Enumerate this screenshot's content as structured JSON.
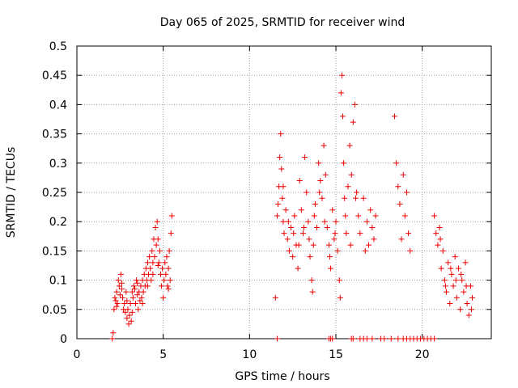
{
  "chart_data": {
    "type": "scatter",
    "title": "Day 065 of 2025, SRMTID for receiver wind",
    "xlabel": "GPS time / hours",
    "ylabel": "SRMTID / TECUs",
    "xlim": [
      0,
      24
    ],
    "ylim": [
      0,
      0.5
    ],
    "xticks": [
      0,
      5,
      10,
      15,
      20
    ],
    "xtick_labels": [
      "0",
      "5",
      "10",
      "15",
      "20"
    ],
    "yticks": [
      0,
      0.05,
      0.1,
      0.15,
      0.2,
      0.25,
      0.3,
      0.35,
      0.4,
      0.45,
      0.5
    ],
    "ytick_labels": [
      "0",
      "0.05",
      "0.1",
      "0.15",
      "0.2",
      "0.25",
      "0.3",
      "0.35",
      "0.4",
      "0.45",
      "0.5"
    ],
    "grid": true,
    "marker": "+",
    "color": "#ee0000",
    "series": [
      {
        "name": "SRMTID",
        "points": [
          [
            2.05,
            0.0
          ],
          [
            2.1,
            0.01
          ],
          [
            2.15,
            0.05
          ],
          [
            2.2,
            0.07
          ],
          [
            2.25,
            0.065
          ],
          [
            2.3,
            0.08
          ],
          [
            2.35,
            0.06
          ],
          [
            2.4,
            0.1
          ],
          [
            2.45,
            0.09
          ],
          [
            2.5,
            0.075
          ],
          [
            2.55,
            0.11
          ],
          [
            2.6,
            0.085
          ],
          [
            2.65,
            0.07
          ],
          [
            2.7,
            0.05
          ],
          [
            2.75,
            0.06
          ],
          [
            2.8,
            0.045
          ],
          [
            2.85,
            0.08
          ],
          [
            2.9,
            0.035
          ],
          [
            2.95,
            0.05
          ],
          [
            3.0,
            0.025
          ],
          [
            3.05,
            0.04
          ],
          [
            3.1,
            0.06
          ],
          [
            3.15,
            0.03
          ],
          [
            3.2,
            0.045
          ],
          [
            3.25,
            0.07
          ],
          [
            3.3,
            0.09
          ],
          [
            3.35,
            0.085
          ],
          [
            3.4,
            0.06
          ],
          [
            3.45,
            0.1
          ],
          [
            3.5,
            0.075
          ],
          [
            3.55,
            0.05
          ],
          [
            3.6,
            0.08
          ],
          [
            3.65,
            0.065
          ],
          [
            3.7,
            0.09
          ],
          [
            3.75,
            0.07
          ],
          [
            3.8,
            0.1
          ],
          [
            3.85,
            0.08
          ],
          [
            3.9,
            0.11
          ],
          [
            3.95,
            0.09
          ],
          [
            4.0,
            0.12
          ],
          [
            4.05,
            0.1
          ],
          [
            4.1,
            0.13
          ],
          [
            4.15,
            0.11
          ],
          [
            4.2,
            0.14
          ],
          [
            4.25,
            0.12
          ],
          [
            4.3,
            0.1
          ],
          [
            4.35,
            0.15
          ],
          [
            4.4,
            0.13
          ],
          [
            4.45,
            0.17
          ],
          [
            4.5,
            0.14
          ],
          [
            4.55,
            0.19
          ],
          [
            4.6,
            0.16
          ],
          [
            4.65,
            0.2
          ],
          [
            4.7,
            0.17
          ],
          [
            4.75,
            0.13
          ],
          [
            4.8,
            0.15
          ],
          [
            4.85,
            0.11
          ],
          [
            4.9,
            0.09
          ],
          [
            4.95,
            0.12
          ],
          [
            5.0,
            0.07
          ],
          [
            5.05,
            0.1
          ],
          [
            5.1,
            0.13
          ],
          [
            5.15,
            0.11
          ],
          [
            5.2,
            0.14
          ],
          [
            5.25,
            0.09
          ],
          [
            5.3,
            0.12
          ],
          [
            5.35,
            0.15
          ],
          [
            5.4,
            0.1
          ],
          [
            5.45,
            0.18
          ],
          [
            5.5,
            0.21
          ],
          [
            2.3,
            0.055
          ],
          [
            2.6,
            0.095
          ],
          [
            2.9,
            0.065
          ],
          [
            3.2,
            0.08
          ],
          [
            3.5,
            0.095
          ],
          [
            3.8,
            0.06
          ],
          [
            4.1,
            0.09
          ],
          [
            4.4,
            0.11
          ],
          [
            4.7,
            0.125
          ],
          [
            5.3,
            0.085
          ],
          [
            11.5,
            0.07
          ],
          [
            11.6,
            0.21
          ],
          [
            11.7,
            0.26
          ],
          [
            11.75,
            0.31
          ],
          [
            11.8,
            0.35
          ],
          [
            11.85,
            0.29
          ],
          [
            11.9,
            0.24
          ],
          [
            11.95,
            0.2
          ],
          [
            12.0,
            0.18
          ],
          [
            12.1,
            0.22
          ],
          [
            12.2,
            0.17
          ],
          [
            12.3,
            0.15
          ],
          [
            12.4,
            0.19
          ],
          [
            12.5,
            0.14
          ],
          [
            12.6,
            0.21
          ],
          [
            12.7,
            0.16
          ],
          [
            12.8,
            0.12
          ],
          [
            12.9,
            0.27
          ],
          [
            13.0,
            0.22
          ],
          [
            13.1,
            0.18
          ],
          [
            13.2,
            0.31
          ],
          [
            13.3,
            0.25
          ],
          [
            13.4,
            0.2
          ],
          [
            13.5,
            0.14
          ],
          [
            13.6,
            0.1
          ],
          [
            13.65,
            0.08
          ],
          [
            13.7,
            0.16
          ],
          [
            13.8,
            0.23
          ],
          [
            13.9,
            0.19
          ],
          [
            14.0,
            0.3
          ],
          [
            14.1,
            0.27
          ],
          [
            14.2,
            0.24
          ],
          [
            14.3,
            0.33
          ],
          [
            14.4,
            0.28
          ],
          [
            14.5,
            0.19
          ],
          [
            14.6,
            0.16
          ],
          [
            14.7,
            0.12
          ],
          [
            14.8,
            0.22
          ],
          [
            14.9,
            0.17
          ],
          [
            15.0,
            0.2
          ],
          [
            15.1,
            0.15
          ],
          [
            15.2,
            0.1
          ],
          [
            15.25,
            0.07
          ],
          [
            15.3,
            0.42
          ],
          [
            15.35,
            0.45
          ],
          [
            15.4,
            0.38
          ],
          [
            15.45,
            0.3
          ],
          [
            15.5,
            0.24
          ],
          [
            15.6,
            0.18
          ],
          [
            15.7,
            0.26
          ],
          [
            15.8,
            0.33
          ],
          [
            15.9,
            0.28
          ],
          [
            16.0,
            0.37
          ],
          [
            16.1,
            0.4
          ],
          [
            16.2,
            0.25
          ],
          [
            16.3,
            0.21
          ],
          [
            16.4,
            0.18
          ],
          [
            16.6,
            0.24
          ],
          [
            16.7,
            0.15
          ],
          [
            16.8,
            0.2
          ],
          [
            16.9,
            0.16
          ],
          [
            17.0,
            0.22
          ],
          [
            17.1,
            0.19
          ],
          [
            17.2,
            0.17
          ],
          [
            17.3,
            0.21
          ],
          [
            18.4,
            0.38
          ],
          [
            18.5,
            0.3
          ],
          [
            18.6,
            0.26
          ],
          [
            18.7,
            0.23
          ],
          [
            18.8,
            0.17
          ],
          [
            18.9,
            0.28
          ],
          [
            19.0,
            0.21
          ],
          [
            19.1,
            0.25
          ],
          [
            19.2,
            0.18
          ],
          [
            19.3,
            0.15
          ],
          [
            11.65,
            0.23
          ],
          [
            11.95,
            0.26
          ],
          [
            12.25,
            0.2
          ],
          [
            12.55,
            0.18
          ],
          [
            12.85,
            0.16
          ],
          [
            13.15,
            0.19
          ],
          [
            13.45,
            0.17
          ],
          [
            13.75,
            0.21
          ],
          [
            14.05,
            0.25
          ],
          [
            14.35,
            0.2
          ],
          [
            14.65,
            0.14
          ],
          [
            14.95,
            0.18
          ],
          [
            15.55,
            0.21
          ],
          [
            15.85,
            0.16
          ],
          [
            16.15,
            0.24
          ],
          [
            20.7,
            0.21
          ],
          [
            20.8,
            0.18
          ],
          [
            20.9,
            0.16
          ],
          [
            21.0,
            0.19
          ],
          [
            21.1,
            0.12
          ],
          [
            21.2,
            0.15
          ],
          [
            21.3,
            0.1
          ],
          [
            21.4,
            0.08
          ],
          [
            21.5,
            0.13
          ],
          [
            21.6,
            0.06
          ],
          [
            21.7,
            0.11
          ],
          [
            21.8,
            0.09
          ],
          [
            21.9,
            0.14
          ],
          [
            22.0,
            0.07
          ],
          [
            22.1,
            0.12
          ],
          [
            22.2,
            0.05
          ],
          [
            22.3,
            0.1
          ],
          [
            22.4,
            0.08
          ],
          [
            22.5,
            0.13
          ],
          [
            22.6,
            0.06
          ],
          [
            22.7,
            0.04
          ],
          [
            22.8,
            0.09
          ],
          [
            22.9,
            0.07
          ],
          [
            21.05,
            0.17
          ],
          [
            21.35,
            0.09
          ],
          [
            21.65,
            0.12
          ],
          [
            21.95,
            0.1
          ],
          [
            22.25,
            0.11
          ],
          [
            22.55,
            0.09
          ],
          [
            22.85,
            0.05
          ],
          [
            11.6,
            0.0
          ],
          [
            14.6,
            0.0
          ],
          [
            14.7,
            0.0
          ],
          [
            14.8,
            0.0
          ],
          [
            15.9,
            0.0
          ],
          [
            16.0,
            0.0
          ],
          [
            16.4,
            0.0
          ],
          [
            16.6,
            0.0
          ],
          [
            16.8,
            0.0
          ],
          [
            17.1,
            0.0
          ],
          [
            17.6,
            0.0
          ],
          [
            17.8,
            0.0
          ],
          [
            18.2,
            0.0
          ],
          [
            18.6,
            0.0
          ],
          [
            18.9,
            0.0
          ],
          [
            19.1,
            0.0
          ],
          [
            19.3,
            0.0
          ],
          [
            19.5,
            0.0
          ],
          [
            19.7,
            0.0
          ],
          [
            19.9,
            0.0
          ],
          [
            20.1,
            0.0
          ],
          [
            20.3,
            0.0
          ],
          [
            20.5,
            0.0
          ],
          [
            20.7,
            0.0
          ]
        ]
      }
    ]
  }
}
